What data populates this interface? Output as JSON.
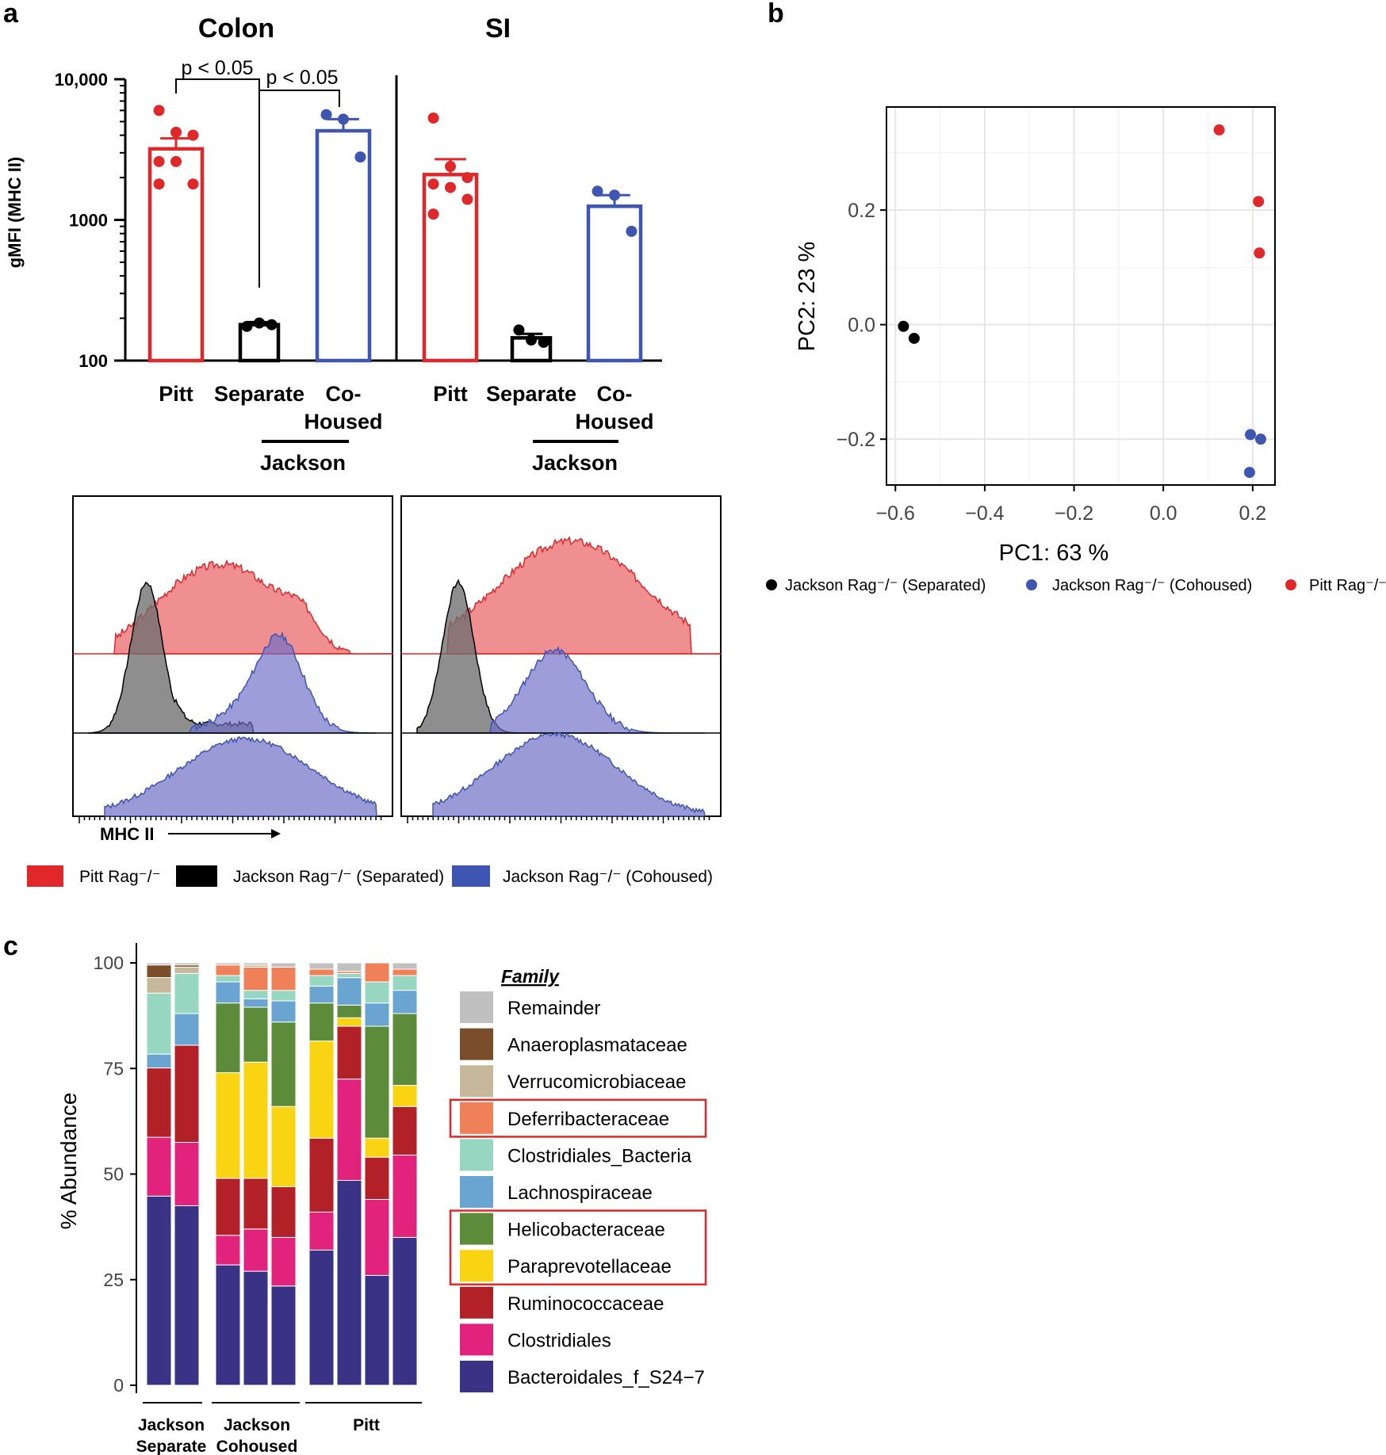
{
  "panel_labels": {
    "a": "a",
    "b": "b",
    "c": "c"
  },
  "colors": {
    "pitt": "#e02729",
    "separate": "#000000",
    "cohoused": "#3f55b2",
    "grid": "#e6e6e6"
  },
  "chart_data": [
    {
      "id": "a_bar",
      "type": "bar",
      "scale": "log",
      "ylabel": "gMFI (MHC II)",
      "ylim": [
        100,
        10000
      ],
      "yticks": [
        "100",
        "1000",
        "10,000"
      ],
      "yticks_values": [
        100,
        1000,
        10000
      ],
      "groups": [
        {
          "title": "Colon",
          "categories": [
            "Pitt",
            "Separate",
            "Co-",
            "Housed"
          ],
          "jackson_label": "Jackson",
          "bars": [
            {
              "name": "Pitt",
              "mean": 3200,
              "sem_top": 3800,
              "color": "pitt",
              "points": [
                6000,
                4200,
                4000,
                2600,
                2600,
                1800,
                1800
              ]
            },
            {
              "name": "Separate",
              "mean": 180,
              "sem_top": 188,
              "color": "separate",
              "points": [
                175,
                185,
                180
              ]
            },
            {
              "name": "Co-Housed",
              "mean": 4300,
              "sem_top": 5200,
              "color": "cohoused",
              "points": [
                5600,
                5200,
                2800
              ]
            }
          ],
          "annotations": [
            "p < 0.05",
            "p < 0.05"
          ]
        },
        {
          "title": "SI",
          "categories": [
            "Pitt",
            "Separate",
            "Co-",
            "Housed"
          ],
          "jackson_label": "Jackson",
          "bars": [
            {
              "name": "Pitt",
              "mean": 2100,
              "sem_top": 2700,
              "color": "pitt",
              "points": [
                5300,
                2400,
                2000,
                1800,
                1700,
                1400,
                1100
              ]
            },
            {
              "name": "Separate",
              "mean": 145,
              "sem_top": 155,
              "color": "separate",
              "points": [
                165,
                140,
                135
              ]
            },
            {
              "name": "Co-Housed",
              "mean": 1250,
              "sem_top": 1500,
              "color": "cohoused",
              "points": [
                1600,
                1500,
                830
              ]
            }
          ]
        }
      ]
    },
    {
      "id": "a_hist",
      "type": "histogram",
      "xlabel": "MHC II",
      "panels": [
        "Colon",
        "SI"
      ]
    },
    {
      "id": "b_pca",
      "type": "scatter",
      "xlabel": "PC1:  63 %",
      "ylabel": "PC2:  23 %",
      "xlim": [
        -0.62,
        0.25
      ],
      "ylim": [
        -0.28,
        0.38
      ],
      "xticks": [
        -0.6,
        -0.4,
        -0.2,
        0.0,
        0.2
      ],
      "xtick_labels": [
        "−0.6",
        "−0.4",
        "−0.2",
        "0.0",
        "0.2"
      ],
      "yticks": [
        -0.2,
        0.0,
        0.2
      ],
      "ytick_labels": [
        "−0.2",
        "0.0",
        "0.2"
      ],
      "series": [
        {
          "name": "Jackson Rag⁻/⁻ (Separated)",
          "color": "separate",
          "points": [
            [
              -0.582,
              -0.003
            ],
            [
              -0.558,
              -0.024
            ]
          ]
        },
        {
          "name": "Jackson Rag⁻/⁻ (Cohoused)",
          "color": "cohoused",
          "points": [
            [
              0.195,
              -0.192
            ],
            [
              0.218,
              -0.2
            ],
            [
              0.193,
              -0.258
            ]
          ]
        },
        {
          "name": "Pitt Rag⁻/⁻",
          "color": "pitt",
          "points": [
            [
              0.125,
              0.34
            ],
            [
              0.213,
              0.215
            ],
            [
              0.215,
              0.125
            ]
          ]
        }
      ]
    },
    {
      "id": "c_stack",
      "type": "bar",
      "stacked": true,
      "ylabel": "% Abundance",
      "ylim": [
        0,
        100
      ],
      "yticks": [
        0,
        25,
        50,
        75,
        100
      ],
      "legend_title": "Family",
      "families": [
        "Bacteroidales_f_S24−7",
        "Clostridiales",
        "Ruminococcaceae",
        "Paraprevotellaceae",
        "Helicobacteraceae",
        "Lachnospiraceae",
        "Clostridiales_Bacteria",
        "Deferribacteraceae",
        "Verrucomicrobiaceae",
        "Anaeroplasmataceae",
        "Remainder"
      ],
      "family_colors": [
        "#3a3285",
        "#e2237e",
        "#b12127",
        "#f8d413",
        "#5c8b3a",
        "#6aa5d2",
        "#97d6c0",
        "#f08058",
        "#c5b89b",
        "#7a4e2a",
        "#c0c0c0"
      ],
      "highlighted": [
        "Deferribacteraceae",
        "Helicobacteraceae",
        "Paraprevotellaceae"
      ],
      "group_labels": [
        [
          "Jackson",
          "Separate"
        ],
        [
          "Jackson",
          "Cohoused"
        ],
        [
          "Pitt"
        ]
      ],
      "samples": [
        {
          "group": 0,
          "values": [
            45,
            14,
            16.5,
            0,
            0,
            3.3,
            14.5,
            0,
            3.7,
            3,
            0.5
          ]
        },
        {
          "group": 0,
          "values": [
            42.5,
            15,
            23,
            0,
            0,
            7.5,
            9.5,
            0,
            1.5,
            0.5,
            0.5
          ]
        },
        {
          "group": 1,
          "values": [
            28.5,
            7,
            13.5,
            25,
            16.5,
            5,
            1.5,
            2.5,
            0,
            0,
            0.5
          ]
        },
        {
          "group": 1,
          "values": [
            27,
            10,
            12,
            27.5,
            13,
            2,
            2,
            5.5,
            0.5,
            0,
            0.5
          ]
        },
        {
          "group": 1,
          "values": [
            23.5,
            11.5,
            12,
            19,
            20,
            5,
            2.5,
            5.5,
            0,
            0,
            1
          ]
        },
        {
          "group": 2,
          "values": [
            32,
            9,
            17.5,
            23,
            9,
            4,
            2.5,
            1.5,
            0,
            0,
            1.5
          ]
        },
        {
          "group": 2,
          "values": [
            48.5,
            24,
            12.5,
            2,
            3,
            6.5,
            1,
            0.5,
            0,
            0,
            2
          ]
        },
        {
          "group": 2,
          "values": [
            26,
            18,
            10,
            4.5,
            26.5,
            5.5,
            5,
            4.5,
            0,
            0,
            0
          ]
        },
        {
          "group": 2,
          "values": [
            35,
            19.5,
            11.5,
            5,
            17,
            5.5,
            3.5,
            1.5,
            0,
            0,
            1.5
          ]
        }
      ]
    }
  ],
  "legend_a": {
    "items": [
      {
        "label": "Pitt Rag⁻/⁻",
        "color": "pitt"
      },
      {
        "label": "Jackson Rag⁻/⁻ (Separated)",
        "color": "separate"
      },
      {
        "label": "Jackson Rag⁻/⁻ (Cohoused)",
        "color": "cohoused"
      }
    ]
  }
}
